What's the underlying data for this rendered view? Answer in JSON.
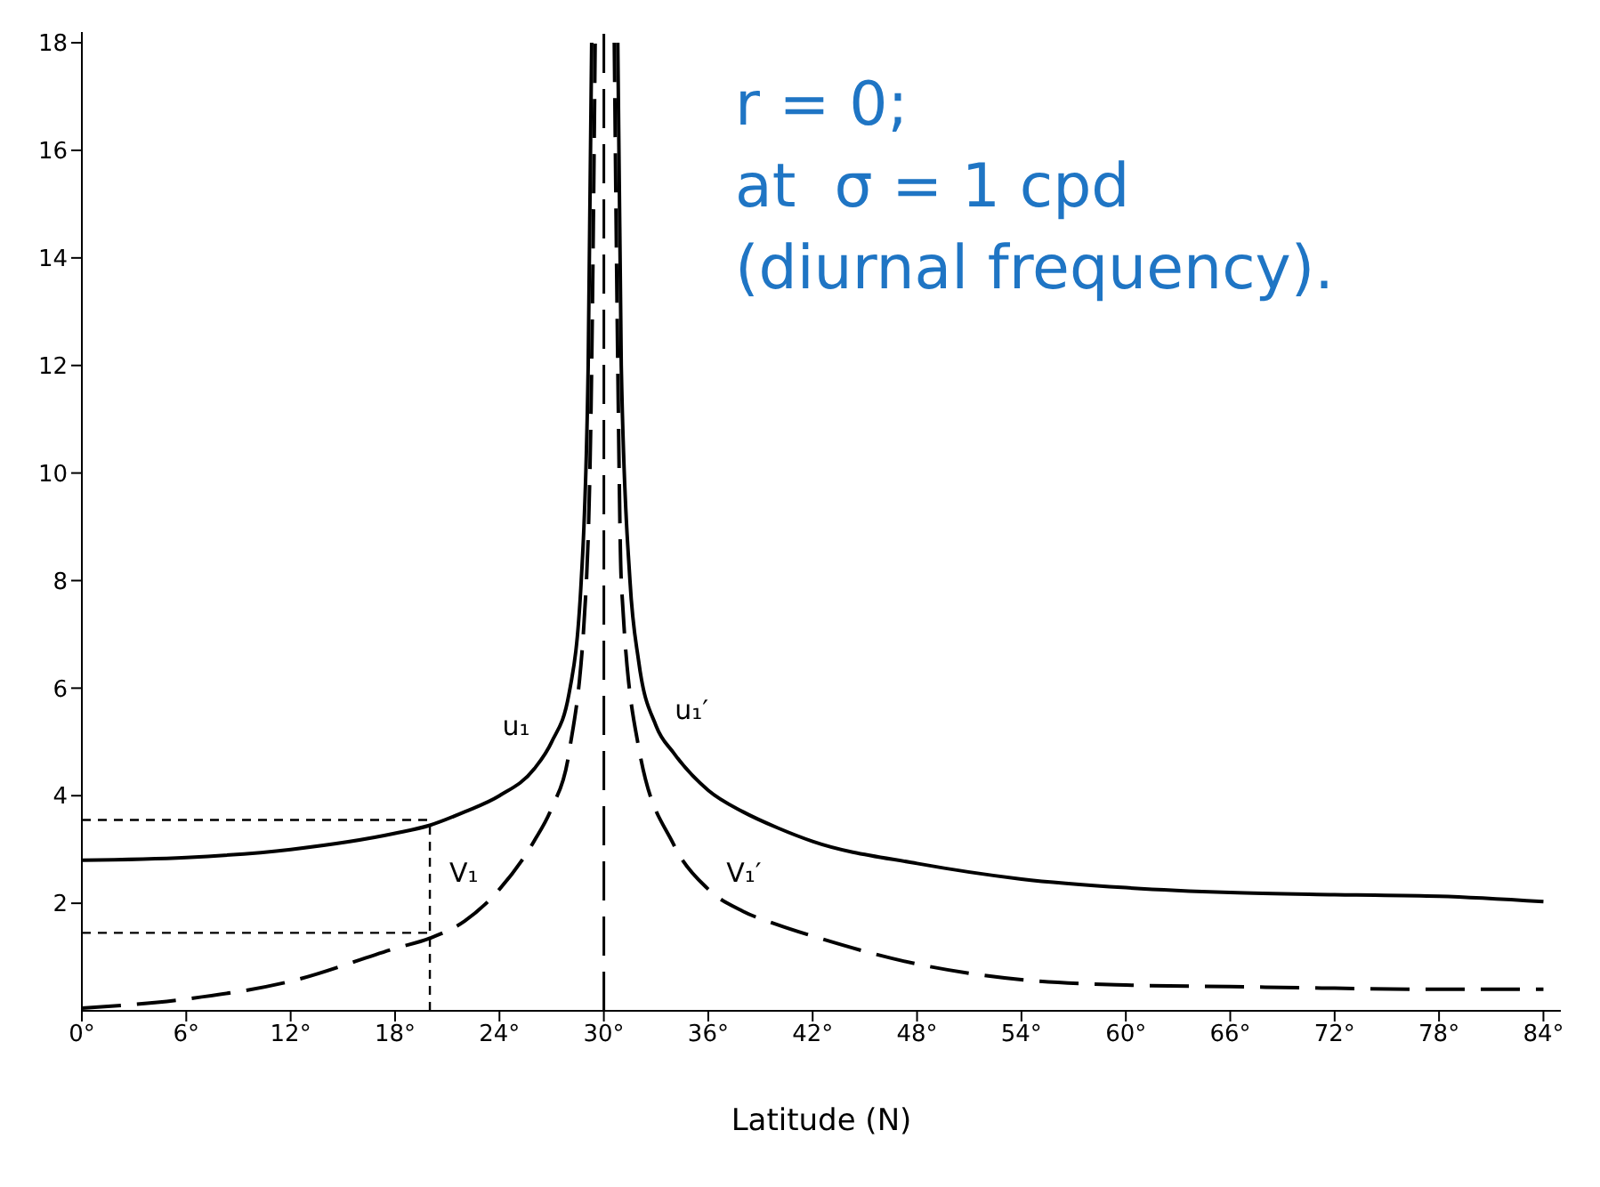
{
  "chart_data": {
    "type": "line",
    "xlabel": "Latitude (N)",
    "xlim": [
      0,
      85
    ],
    "ylim": [
      0,
      18.2
    ],
    "xticks": [
      {
        "value": 0,
        "label": "0°"
      },
      {
        "value": 6,
        "label": "6°"
      },
      {
        "value": 12,
        "label": "12°"
      },
      {
        "value": 18,
        "label": "18°"
      },
      {
        "value": 24,
        "label": "24°"
      },
      {
        "value": 30,
        "label": "30°"
      },
      {
        "value": 36,
        "label": "36°"
      },
      {
        "value": 42,
        "label": "42°"
      },
      {
        "value": 48,
        "label": "48°"
      },
      {
        "value": 54,
        "label": "54°"
      },
      {
        "value": 60,
        "label": "60°"
      },
      {
        "value": 66,
        "label": "66°"
      },
      {
        "value": 72,
        "label": "72°"
      },
      {
        "value": 78,
        "label": "78°"
      },
      {
        "value": 84,
        "label": "84°"
      }
    ],
    "yticks": [
      2,
      4,
      6,
      8,
      10,
      12,
      14,
      16,
      18
    ],
    "marker": "none",
    "series": [
      {
        "name": "u₁",
        "color": "#000000",
        "line_style": "solid",
        "x": [
          0,
          6,
          12,
          18,
          20,
          22,
          24,
          26,
          27,
          28,
          28.7,
          29.1,
          29.3
        ],
        "values": [
          2.8,
          2.85,
          3.0,
          3.3,
          3.45,
          3.7,
          4.0,
          4.5,
          5.0,
          5.9,
          8,
          12,
          18
        ]
      },
      {
        "name": "u₁′",
        "color": "#000000",
        "line_style": "solid",
        "x": [
          30.8,
          31,
          31.5,
          32,
          33,
          34,
          36,
          38,
          40,
          42,
          48,
          54,
          60,
          66,
          72,
          78,
          84
        ],
        "values": [
          18,
          12,
          8,
          6.5,
          5.3,
          4.8,
          4.1,
          3.7,
          3.4,
          3.15,
          2.74,
          2.45,
          2.29,
          2.2,
          2.16,
          2.13,
          2.03
        ]
      },
      {
        "name": "V₁",
        "color": "#000000",
        "line_style": "dashed",
        "x": [
          0,
          6,
          12,
          18,
          20,
          22,
          24,
          26,
          27,
          28,
          29,
          29.3,
          29.5
        ],
        "values": [
          0.05,
          0.22,
          0.55,
          1.16,
          1.35,
          1.67,
          2.26,
          3.16,
          3.77,
          4.8,
          8,
          12,
          18
        ]
      },
      {
        "name": "V₁′",
        "color": "#000000",
        "line_style": "dashed",
        "x": [
          30.6,
          30.8,
          31,
          32,
          34,
          36,
          38,
          40,
          42,
          48,
          54,
          60,
          66,
          72,
          78,
          84
        ],
        "values": [
          18,
          12,
          8,
          4.9,
          3.1,
          2.26,
          1.85,
          1.6,
          1.39,
          0.87,
          0.58,
          0.48,
          0.45,
          0.42,
          0.4,
          0.4
        ]
      },
      {
        "color": "#000000",
        "line_style": "dotted",
        "x": [
          0,
          20
        ],
        "values": [
          3.55,
          3.55
        ]
      },
      {
        "color": "#000000",
        "line_style": "dotted",
        "x": [
          0,
          20
        ],
        "values": [
          1.45,
          1.45
        ]
      },
      {
        "color": "#000000",
        "line_style": "dotted",
        "x": [
          20,
          20
        ],
        "values": [
          0,
          3.5
        ]
      }
    ],
    "ref_lines": [
      {
        "axis": "x",
        "value": 30,
        "label": null,
        "color": "#000000",
        "line_style": "dashed"
      }
    ],
    "annotations": [
      "r = 0;",
      "at  σ = 1 cpd",
      "(diurnal frequency)."
    ]
  }
}
